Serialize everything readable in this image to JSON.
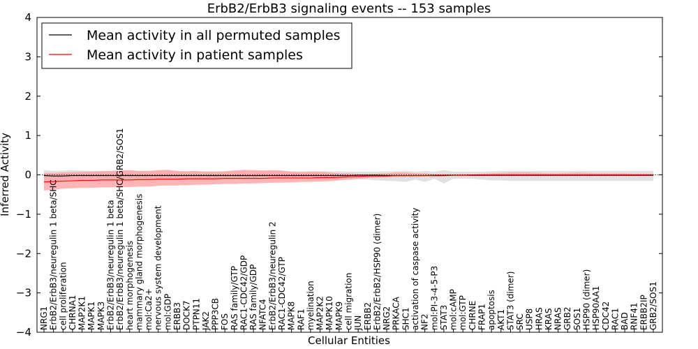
{
  "chart_data": {
    "type": "line",
    "title": "ErbB2/ErbB3 signaling events -- 153 samples",
    "xlabel": "Cellular Entities",
    "ylabel": "Inferred Activity",
    "ylim": [
      -4,
      4
    ],
    "yticks": [
      4,
      3,
      2,
      1,
      0,
      -1,
      -2,
      -3,
      -4
    ],
    "legend_position": "top-left",
    "colors": {
      "permuted": "#000000",
      "patient": "#ff0000",
      "patient_band": "#ff9c9c",
      "permuted_band": "#d9d9d9"
    },
    "categories": [
      "NRG1",
      "ErbB2/ErbB3/neuregulin 1 beta/SHC",
      "cell proliferation",
      "CHRNA1",
      "MAP2K1",
      "MAPK1",
      "MAPK3",
      "ErbB2/ErbB3/neuregulin 1 beta",
      "ErbB2/ErbB3/neuregulin 1 beta/SHC/GRB2/SOS1",
      "heart morphogenesis",
      "mammary gland morphogenesis",
      "mol:Ca2+",
      "nervous system development",
      "mol:GDP",
      "ERBB3",
      "DOCK7",
      "PTPN11",
      "JAK2",
      "PPP3CB",
      "FOS",
      "RAS family/GTP",
      "RAC1-CDC42/GDP",
      "RAS family/GDP",
      "NFATC4",
      "ErbB2/ErbB3/neuregulin 2",
      "RAC1-CDC42/GTP",
      "MAPK8",
      "RAF1",
      "myelination",
      "MAP2K2",
      "MAPK10",
      "MAPK9",
      "cell migration",
      "JUN",
      "ERBB2",
      "ErbB2/ErbB2/HSP90 (dimer)",
      "NRG2",
      "PRKACA",
      "SHC1",
      "activation of caspase activity",
      "NF2",
      "mol:PI-3-4-5-P3",
      "STAT3",
      "mol:cAMP",
      "mol:GTP",
      "CHRNE",
      "FRAP1",
      "apoptosis",
      "AKT1",
      "STAT3 (dimer)",
      "SRC",
      "USP8",
      "HRAS",
      "KRAS",
      "NRAS",
      "GRB2",
      "SOS1",
      "HSP90 (dimer)",
      "HSP90AA1",
      "CDC42",
      "RAC1",
      "BAD",
      "RNF41",
      "ERBB2IP",
      "GRB2/SOS1"
    ],
    "series": [
      {
        "name": "Mean activity in all permuted samples",
        "values": [
          -0.02,
          -0.03,
          -0.03,
          -0.02,
          -0.02,
          -0.02,
          -0.02,
          -0.02,
          -0.02,
          -0.02,
          -0.02,
          -0.02,
          -0.02,
          -0.02,
          -0.02,
          -0.02,
          -0.02,
          -0.02,
          -0.02,
          -0.02,
          -0.02,
          -0.02,
          -0.02,
          -0.02,
          -0.02,
          -0.02,
          -0.02,
          -0.02,
          -0.02,
          -0.02,
          -0.02,
          -0.02,
          -0.02,
          -0.01,
          -0.01,
          -0.01,
          -0.02,
          -0.02,
          -0.02,
          -0.02,
          -0.02,
          -0.02,
          -0.02,
          -0.01,
          -0.01,
          -0.01,
          -0.01,
          -0.01,
          -0.01,
          -0.01,
          -0.01,
          -0.01,
          -0.01,
          -0.01,
          -0.01,
          -0.01,
          -0.01,
          -0.01,
          -0.01,
          -0.01,
          -0.01,
          -0.01,
          -0.01,
          -0.01,
          -0.01
        ],
        "lower": [
          -0.25,
          -0.18,
          -0.15,
          -0.14,
          -0.13,
          -0.12,
          -0.12,
          -0.12,
          -0.12,
          -0.12,
          -0.12,
          -0.12,
          -0.12,
          -0.12,
          -0.12,
          -0.12,
          -0.12,
          -0.12,
          -0.12,
          -0.12,
          -0.12,
          -0.12,
          -0.12,
          -0.12,
          -0.12,
          -0.12,
          -0.12,
          -0.12,
          -0.12,
          -0.12,
          -0.12,
          -0.12,
          -0.12,
          -0.12,
          -0.12,
          -0.14,
          -0.15,
          -0.16,
          -0.18,
          -0.12,
          -0.18,
          -0.1,
          -0.22,
          -0.1,
          -0.1,
          -0.1,
          -0.12,
          -0.14,
          -0.14,
          -0.15,
          -0.15,
          -0.15,
          -0.15,
          -0.15,
          -0.15,
          -0.15,
          -0.15,
          -0.15,
          -0.15,
          -0.15,
          -0.15,
          -0.15,
          -0.15,
          -0.15,
          -0.15
        ],
        "upper": [
          0.12,
          0.1,
          0.11,
          0.12,
          0.11,
          0.1,
          0.1,
          0.1,
          0.1,
          0.1,
          0.09,
          0.09,
          0.09,
          0.09,
          0.09,
          0.09,
          0.09,
          0.09,
          0.09,
          0.09,
          0.09,
          0.09,
          0.09,
          0.09,
          0.09,
          0.09,
          0.09,
          0.09,
          0.09,
          0.09,
          0.09,
          0.09,
          0.08,
          0.08,
          0.08,
          0.08,
          0.09,
          0.09,
          0.1,
          0.08,
          0.1,
          0.08,
          0.12,
          0.08,
          0.08,
          0.08,
          0.08,
          0.09,
          0.1,
          0.1,
          0.1,
          0.1,
          0.1,
          0.1,
          0.1,
          0.1,
          0.1,
          0.1,
          0.1,
          0.1,
          0.1,
          0.1,
          0.1,
          0.1,
          0.1
        ]
      },
      {
        "name": "Mean activity in patient samples",
        "values": [
          -0.18,
          -0.17,
          -0.16,
          -0.15,
          -0.14,
          -0.14,
          -0.13,
          -0.13,
          -0.13,
          -0.13,
          -0.12,
          -0.12,
          -0.11,
          -0.11,
          -0.11,
          -0.1,
          -0.1,
          -0.1,
          -0.1,
          -0.09,
          -0.09,
          -0.09,
          -0.09,
          -0.09,
          -0.08,
          -0.08,
          -0.08,
          -0.08,
          -0.08,
          -0.07,
          -0.07,
          -0.06,
          -0.05,
          -0.04,
          -0.03,
          -0.03,
          -0.03,
          -0.02,
          -0.02,
          -0.02,
          -0.02,
          -0.01,
          -0.01,
          -0.01,
          -0.01,
          0.0,
          0.0,
          0.0,
          0.0,
          0.0,
          0.0,
          0.0,
          0.0,
          0.0,
          0.0,
          0.0,
          0.0,
          0.0,
          0.0,
          0.0,
          0.0,
          0.0,
          0.0,
          0.0,
          0.0
        ],
        "lower": [
          -0.4,
          -0.38,
          -0.35,
          -0.34,
          -0.33,
          -0.33,
          -0.32,
          -0.32,
          -0.31,
          -0.31,
          -0.3,
          -0.3,
          -0.28,
          -0.27,
          -0.27,
          -0.26,
          -0.25,
          -0.25,
          -0.24,
          -0.23,
          -0.23,
          -0.22,
          -0.22,
          -0.21,
          -0.2,
          -0.2,
          -0.19,
          -0.18,
          -0.18,
          -0.17,
          -0.16,
          -0.14,
          -0.12,
          -0.1,
          -0.08,
          -0.07,
          -0.06,
          -0.05,
          -0.05,
          -0.04,
          -0.04,
          -0.04,
          -0.04,
          -0.03,
          -0.03,
          -0.03,
          -0.03,
          -0.03,
          -0.03,
          -0.03,
          -0.03,
          -0.03,
          -0.03,
          -0.03,
          -0.03,
          -0.03,
          -0.03,
          -0.03,
          -0.03,
          -0.03,
          -0.03,
          -0.03,
          -0.03,
          -0.03,
          -0.03
        ],
        "upper": [
          0.05,
          0.05,
          0.06,
          0.07,
          0.08,
          0.08,
          0.09,
          0.1,
          0.11,
          0.12,
          0.1,
          0.1,
          0.12,
          0.13,
          0.1,
          0.09,
          0.1,
          0.08,
          0.08,
          0.09,
          0.11,
          0.13,
          0.12,
          0.11,
          0.12,
          0.11,
          0.08,
          0.07,
          0.08,
          0.08,
          0.06,
          0.04,
          0.04,
          0.02,
          0.02,
          0.03,
          0.04,
          0.06,
          0.06,
          0.04,
          0.04,
          0.02,
          0.02,
          0.02,
          0.02,
          0.02,
          0.03,
          0.04,
          0.05,
          0.06,
          0.07,
          0.06,
          0.05,
          0.04,
          0.04,
          0.05,
          0.06,
          0.05,
          0.04,
          0.04,
          0.04,
          0.04,
          0.03,
          0.03,
          0.03
        ]
      }
    ]
  }
}
